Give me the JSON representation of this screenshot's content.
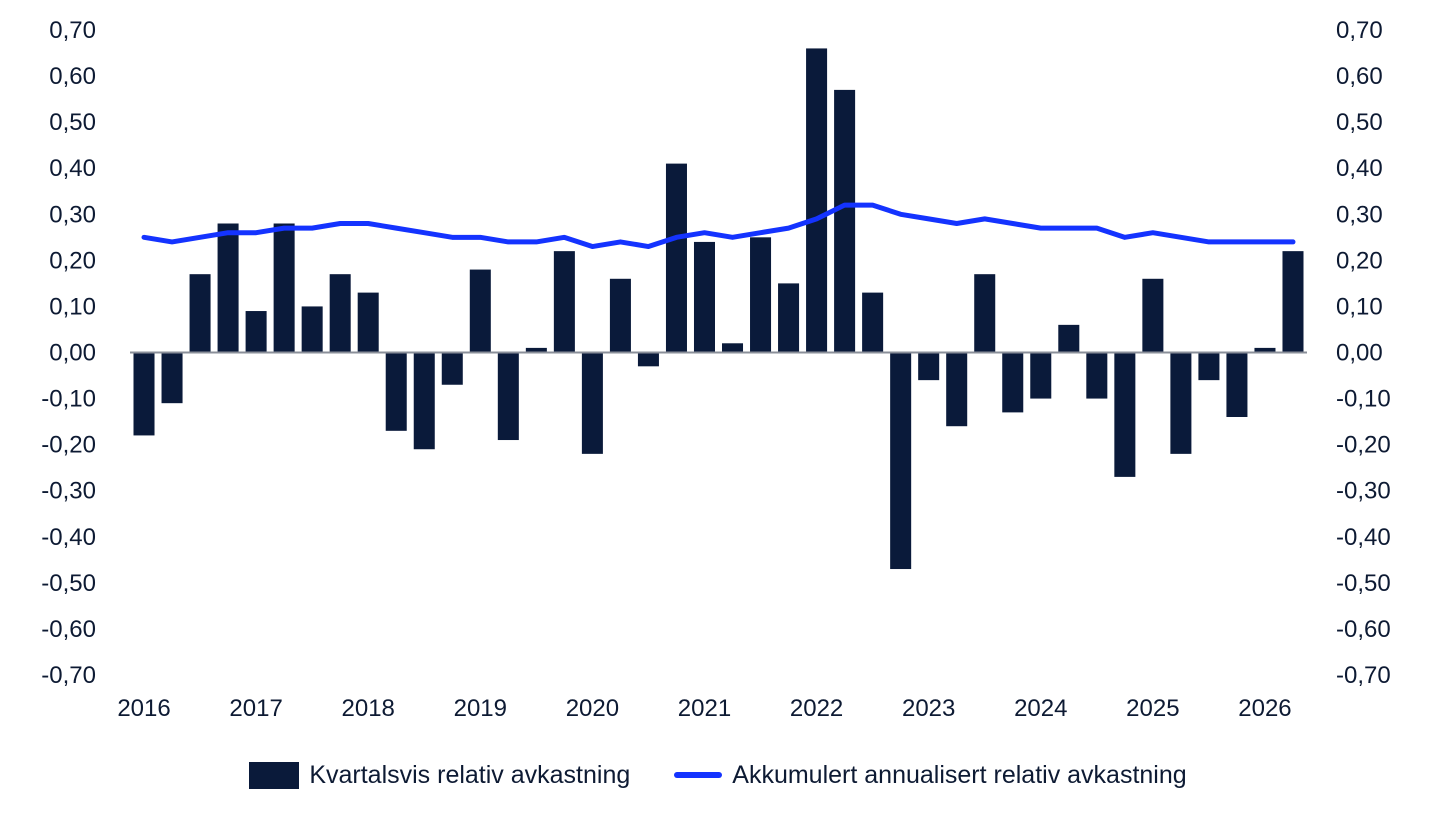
{
  "chart_data": {
    "type": "bar",
    "y_ticks": [
      "0,70",
      "0,60",
      "0,50",
      "0,40",
      "0,30",
      "0,20",
      "0,10",
      "0,00",
      "-0,10",
      "-0,20",
      "-0,30",
      "-0,40",
      "-0,50",
      "-0,60",
      "-0,70"
    ],
    "y_tick_values": [
      0.7,
      0.6,
      0.5,
      0.4,
      0.3,
      0.2,
      0.1,
      0,
      -0.1,
      -0.2,
      -0.3,
      -0.4,
      -0.5,
      -0.6,
      -0.7
    ],
    "ylim": [
      -0.7,
      0.7
    ],
    "x_ticks": [
      "2016",
      "2017",
      "2018",
      "2019",
      "2020",
      "2021",
      "2022",
      "2023",
      "2024",
      "2025",
      "2026"
    ],
    "grid": false,
    "legend_position": "bottom",
    "series": [
      {
        "name": "Kvartalsvis relativ avkastning",
        "type": "bar",
        "color": "#0a1a3a",
        "values": [
          -0.18,
          -0.11,
          0.17,
          0.28,
          0.09,
          0.28,
          0.1,
          0.17,
          0.13,
          -0.17,
          -0.21,
          -0.07,
          0.18,
          -0.19,
          0.01,
          0.22,
          -0.22,
          0.16,
          -0.03,
          0.41,
          0.24,
          0.02,
          0.25,
          0.15,
          0.66,
          0.57,
          0.13,
          -0.47,
          -0.06,
          -0.16,
          0.17,
          -0.13,
          -0.1,
          0.06,
          -0.1,
          -0.27,
          0.16,
          -0.22,
          -0.06,
          -0.14,
          0.01,
          0.22
        ]
      },
      {
        "name": "Akkumulert annualisert relativ avkastning",
        "type": "line",
        "color": "#1433ff",
        "values": [
          0.25,
          0.24,
          0.25,
          0.26,
          0.26,
          0.27,
          0.27,
          0.28,
          0.28,
          0.27,
          0.26,
          0.25,
          0.25,
          0.24,
          0.24,
          0.25,
          0.23,
          0.24,
          0.23,
          0.25,
          0.26,
          0.25,
          0.26,
          0.27,
          0.29,
          0.32,
          0.32,
          0.3,
          0.29,
          0.28,
          0.29,
          0.28,
          0.27,
          0.27,
          0.27,
          0.25,
          0.26,
          0.25,
          0.24,
          0.24,
          0.24,
          0.24
        ]
      }
    ]
  }
}
